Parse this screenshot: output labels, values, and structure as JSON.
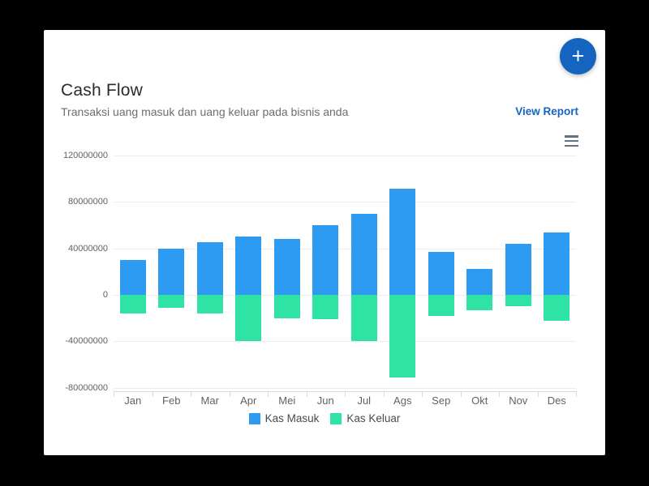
{
  "card": {
    "title": "Cash Flow",
    "subtitle": "Transaksi uang masuk dan uang keluar pada bisnis anda",
    "view_report_label": "View Report",
    "fab_label": "+"
  },
  "colors": {
    "kas_masuk": "#2e9bf2",
    "kas_keluar": "#2ee3a3",
    "accent_blue": "#1565c0",
    "background": "#000000",
    "card_background": "#ffffff"
  },
  "chart_data": {
    "type": "bar",
    "title": "Cash Flow",
    "categories": [
      "Jan",
      "Feb",
      "Mar",
      "Apr",
      "Mei",
      "Jun",
      "Jul",
      "Ags",
      "Sep",
      "Okt",
      "Nov",
      "Des"
    ],
    "series": [
      {
        "name": "Kas Masuk",
        "color_key": "kas_masuk",
        "values": [
          30000000,
          40000000,
          45000000,
          50000000,
          48000000,
          60000000,
          70000000,
          91000000,
          37000000,
          22000000,
          44000000,
          54000000
        ]
      },
      {
        "name": "Kas Keluar",
        "color_key": "kas_keluar",
        "values": [
          -16000000,
          -11000000,
          -16000000,
          -40000000,
          -20000000,
          -21000000,
          -40000000,
          -71000000,
          -18000000,
          -13000000,
          -10000000,
          -22000000
        ]
      }
    ],
    "ylim": [
      -80000000,
      120000000
    ],
    "yticks": [
      120000000,
      80000000,
      40000000,
      0,
      -40000000,
      -80000000
    ],
    "ytick_labels": [
      "120000000",
      "80000000",
      "40000000",
      "0",
      "-40000000",
      "-80000000"
    ],
    "grid": true,
    "legend_position": "bottom"
  }
}
